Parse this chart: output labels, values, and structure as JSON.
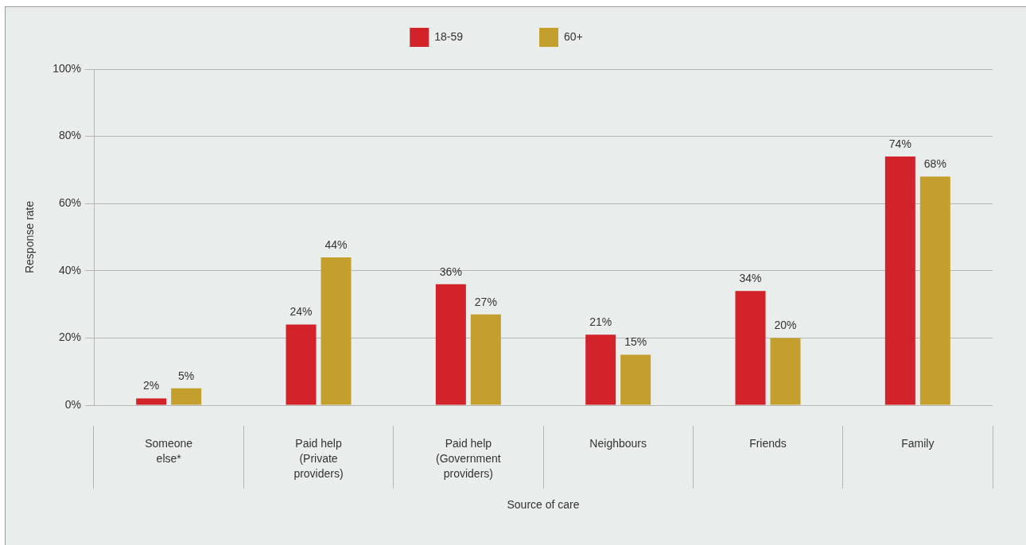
{
  "chart_data": {
    "type": "bar",
    "xlabel": "Source of care",
    "ylabel": "Response rate",
    "categories": [
      "Someone else*",
      "Paid help (Private providers)",
      "Paid help (Government providers)",
      "Neighbours",
      "Friends",
      "Family"
    ],
    "series": [
      {
        "name": "18-59",
        "color": "#d2232a",
        "values": [
          2,
          24,
          36,
          21,
          34,
          74
        ],
        "value_labels": [
          "2%",
          "24%",
          "36%",
          "21%",
          "34%",
          "74%"
        ]
      },
      {
        "name": "60+",
        "color": "#c49f2d",
        "values": [
          5,
          44,
          27,
          15,
          20,
          68
        ],
        "value_labels": [
          "5%",
          "44%",
          "27%",
          "15%",
          "20%",
          "68%"
        ]
      }
    ],
    "ylim": [
      0,
      100
    ],
    "yticks": [
      {
        "value": 0,
        "label": "0%"
      },
      {
        "value": 20,
        "label": "20%"
      },
      {
        "value": 40,
        "label": "40%"
      },
      {
        "value": 60,
        "label": "60%"
      },
      {
        "value": 80,
        "label": "80%"
      },
      {
        "value": 100,
        "label": "100%"
      }
    ],
    "grid": "y",
    "legend": "top"
  }
}
